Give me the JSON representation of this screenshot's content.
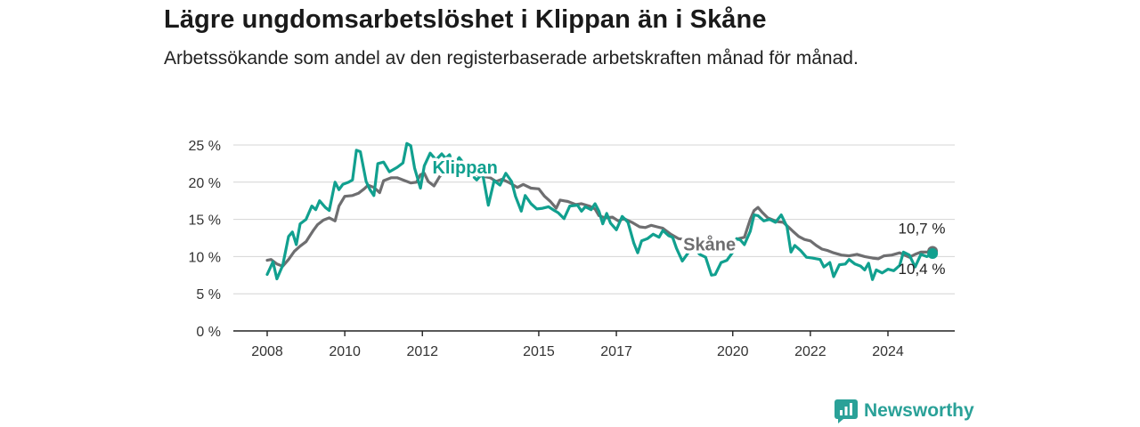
{
  "header": {
    "title": "Lägre ungdomsarbetslöshet i Klippan än i Skåne",
    "subtitle": "Arbetssökande som andel av den registerbaserade arbetskraften månad för månad."
  },
  "brand": {
    "name": "Newsworthy",
    "color": "#2aa198"
  },
  "chart_data": {
    "type": "line",
    "title": "Lägre ungdomsarbetslöshet i Klippan än i Skåne",
    "subtitle": "Arbetssökande som andel av den registerbaserade arbetskraften månad för månad.",
    "xlabel": "",
    "ylabel": "",
    "xlim": [
      2008.0,
      2025.2
    ],
    "ylim": [
      0,
      25
    ],
    "x_ticks": [
      2008,
      2010,
      2012,
      2015,
      2017,
      2020,
      2022,
      2024
    ],
    "y_ticks": [
      0,
      5,
      10,
      15,
      20,
      25
    ],
    "y_tick_labels": [
      "0 %",
      "5 %",
      "10 %",
      "15 %",
      "20 %",
      "25 %"
    ],
    "grid": true,
    "series": [
      {
        "name": "Skåne",
        "color": "#6e6e70",
        "end_label": "10,7 %",
        "points": [
          [
            2008.0,
            9.5
          ],
          [
            2008.1,
            9.6
          ],
          [
            2008.25,
            9.0
          ],
          [
            2008.4,
            8.7
          ],
          [
            2008.55,
            9.6
          ],
          [
            2008.7,
            10.7
          ],
          [
            2008.85,
            11.4
          ],
          [
            2009.0,
            12.0
          ],
          [
            2009.1,
            12.8
          ],
          [
            2009.2,
            13.6
          ],
          [
            2009.3,
            14.3
          ],
          [
            2009.45,
            14.9
          ],
          [
            2009.6,
            15.2
          ],
          [
            2009.75,
            14.8
          ],
          [
            2009.85,
            16.8
          ],
          [
            2010.0,
            18.1
          ],
          [
            2010.2,
            18.2
          ],
          [
            2010.35,
            18.5
          ],
          [
            2010.5,
            19.1
          ],
          [
            2010.6,
            19.6
          ],
          [
            2010.75,
            19.3
          ],
          [
            2010.9,
            18.6
          ],
          [
            2011.0,
            20.2
          ],
          [
            2011.2,
            20.6
          ],
          [
            2011.35,
            20.6
          ],
          [
            2011.55,
            20.2
          ],
          [
            2011.7,
            19.9
          ],
          [
            2011.85,
            20.0
          ],
          [
            2011.95,
            21.0
          ],
          [
            2012.05,
            21.2
          ],
          [
            2012.15,
            20.1
          ],
          [
            2012.3,
            19.5
          ],
          [
            2012.45,
            20.8
          ],
          [
            2012.55,
            21.1
          ],
          [
            2012.65,
            21.3
          ],
          [
            2012.8,
            21.5
          ],
          [
            2012.95,
            21.6
          ],
          [
            2013.15,
            21.7
          ],
          [
            2013.35,
            21.1
          ],
          [
            2013.55,
            20.8
          ],
          [
            2013.75,
            20.6
          ],
          [
            2013.9,
            20.1
          ],
          [
            2014.05,
            20.4
          ],
          [
            2014.25,
            19.9
          ],
          [
            2014.45,
            19.3
          ],
          [
            2014.6,
            19.7
          ],
          [
            2014.8,
            19.2
          ],
          [
            2015.0,
            19.1
          ],
          [
            2015.15,
            18.1
          ],
          [
            2015.3,
            17.4
          ],
          [
            2015.45,
            16.5
          ],
          [
            2015.55,
            17.6
          ],
          [
            2015.75,
            17.4
          ],
          [
            2015.95,
            17.0
          ],
          [
            2016.1,
            17.1
          ],
          [
            2016.3,
            16.8
          ],
          [
            2016.45,
            16.4
          ],
          [
            2016.55,
            15.5
          ],
          [
            2016.7,
            15.2
          ],
          [
            2016.9,
            15.3
          ],
          [
            2017.05,
            14.8
          ],
          [
            2017.2,
            15.1
          ],
          [
            2017.4,
            14.6
          ],
          [
            2017.6,
            14.0
          ],
          [
            2017.75,
            13.9
          ],
          [
            2017.9,
            14.2
          ],
          [
            2018.05,
            14.0
          ],
          [
            2018.2,
            13.8
          ],
          [
            2018.4,
            13.0
          ],
          [
            2018.6,
            12.4
          ],
          [
            2018.8,
            12.3
          ],
          [
            2019.0,
            12.2
          ],
          [
            2019.2,
            12.0
          ],
          [
            2019.4,
            11.6
          ],
          [
            2019.6,
            11.9
          ],
          [
            2019.8,
            11.9
          ],
          [
            2020.0,
            12.1
          ],
          [
            2020.15,
            12.4
          ],
          [
            2020.3,
            12.6
          ],
          [
            2020.45,
            15.0
          ],
          [
            2020.55,
            16.2
          ],
          [
            2020.65,
            16.6
          ],
          [
            2020.75,
            16.0
          ],
          [
            2020.9,
            15.2
          ],
          [
            2021.0,
            15.0
          ],
          [
            2021.15,
            14.7
          ],
          [
            2021.3,
            14.6
          ],
          [
            2021.45,
            13.9
          ],
          [
            2021.55,
            13.4
          ],
          [
            2021.7,
            12.7
          ],
          [
            2021.85,
            12.3
          ],
          [
            2022.0,
            12.1
          ],
          [
            2022.15,
            11.5
          ],
          [
            2022.3,
            11.0
          ],
          [
            2022.45,
            10.8
          ],
          [
            2022.6,
            10.5
          ],
          [
            2022.8,
            10.2
          ],
          [
            2023.0,
            10.1
          ],
          [
            2023.2,
            10.3
          ],
          [
            2023.4,
            10.0
          ],
          [
            2023.6,
            9.8
          ],
          [
            2023.75,
            9.7
          ],
          [
            2023.9,
            10.1
          ],
          [
            2024.1,
            10.2
          ],
          [
            2024.3,
            10.5
          ],
          [
            2024.55,
            9.9
          ],
          [
            2024.7,
            10.3
          ],
          [
            2024.85,
            10.6
          ],
          [
            2025.0,
            10.6
          ],
          [
            2025.15,
            10.7
          ]
        ]
      },
      {
        "name": "Klippan",
        "color": "#11a08f",
        "end_label": "10,4 %",
        "points": [
          [
            2008.0,
            7.6
          ],
          [
            2008.15,
            9.3
          ],
          [
            2008.25,
            7.0
          ],
          [
            2008.4,
            8.8
          ],
          [
            2008.55,
            12.7
          ],
          [
            2008.65,
            13.3
          ],
          [
            2008.75,
            11.6
          ],
          [
            2008.85,
            14.4
          ],
          [
            2009.0,
            15.0
          ],
          [
            2009.15,
            16.8
          ],
          [
            2009.25,
            16.3
          ],
          [
            2009.35,
            17.5
          ],
          [
            2009.5,
            16.6
          ],
          [
            2009.6,
            16.2
          ],
          [
            2009.75,
            20.0
          ],
          [
            2009.85,
            19.0
          ],
          [
            2009.95,
            19.7
          ],
          [
            2010.1,
            20.0
          ],
          [
            2010.2,
            20.3
          ],
          [
            2010.3,
            24.3
          ],
          [
            2010.4,
            24.1
          ],
          [
            2010.55,
            20.1
          ],
          [
            2010.65,
            19.0
          ],
          [
            2010.75,
            18.2
          ],
          [
            2010.85,
            22.5
          ],
          [
            2011.0,
            22.7
          ],
          [
            2011.15,
            21.4
          ],
          [
            2011.35,
            22.0
          ],
          [
            2011.5,
            22.6
          ],
          [
            2011.6,
            25.2
          ],
          [
            2011.7,
            24.9
          ],
          [
            2011.8,
            21.9
          ],
          [
            2011.95,
            19.2
          ],
          [
            2012.05,
            22.2
          ],
          [
            2012.2,
            23.9
          ],
          [
            2012.35,
            23.0
          ],
          [
            2012.5,
            23.8
          ],
          [
            2012.6,
            23.2
          ],
          [
            2012.7,
            23.7
          ],
          [
            2012.8,
            22.3
          ],
          [
            2012.95,
            23.3
          ],
          [
            2013.1,
            22.3
          ],
          [
            2013.25,
            21.1
          ],
          [
            2013.4,
            20.3
          ],
          [
            2013.55,
            21.2
          ],
          [
            2013.7,
            16.9
          ],
          [
            2013.85,
            20.2
          ],
          [
            2014.0,
            19.6
          ],
          [
            2014.15,
            21.2
          ],
          [
            2014.3,
            20.1
          ],
          [
            2014.4,
            18.1
          ],
          [
            2014.55,
            16.1
          ],
          [
            2014.65,
            18.2
          ],
          [
            2014.8,
            17.1
          ],
          [
            2014.95,
            16.4
          ],
          [
            2015.1,
            16.5
          ],
          [
            2015.25,
            16.7
          ],
          [
            2015.4,
            16.2
          ],
          [
            2015.5,
            15.9
          ],
          [
            2015.65,
            15.1
          ],
          [
            2015.8,
            16.8
          ],
          [
            2016.0,
            16.9
          ],
          [
            2016.1,
            16.1
          ],
          [
            2016.2,
            16.7
          ],
          [
            2016.35,
            16.3
          ],
          [
            2016.45,
            17.1
          ],
          [
            2016.55,
            16.1
          ],
          [
            2016.65,
            14.4
          ],
          [
            2016.75,
            15.8
          ],
          [
            2016.85,
            14.5
          ],
          [
            2017.0,
            13.6
          ],
          [
            2017.15,
            15.4
          ],
          [
            2017.3,
            14.6
          ],
          [
            2017.45,
            11.8
          ],
          [
            2017.55,
            10.5
          ],
          [
            2017.65,
            12.1
          ],
          [
            2017.8,
            12.4
          ],
          [
            2017.95,
            13.0
          ],
          [
            2018.1,
            12.6
          ],
          [
            2018.2,
            13.5
          ],
          [
            2018.35,
            12.8
          ],
          [
            2018.45,
            12.6
          ],
          [
            2018.55,
            11.1
          ],
          [
            2018.7,
            9.4
          ],
          [
            2018.85,
            10.5
          ],
          [
            2019.0,
            11.2
          ],
          [
            2019.15,
            10.3
          ],
          [
            2019.3,
            9.9
          ],
          [
            2019.45,
            7.5
          ],
          [
            2019.55,
            7.6
          ],
          [
            2019.7,
            9.2
          ],
          [
            2019.85,
            9.5
          ],
          [
            2020.0,
            10.6
          ],
          [
            2020.1,
            12.4
          ],
          [
            2020.2,
            12.2
          ],
          [
            2020.3,
            11.6
          ],
          [
            2020.45,
            13.4
          ],
          [
            2020.55,
            15.6
          ],
          [
            2020.65,
            15.5
          ],
          [
            2020.8,
            14.8
          ],
          [
            2020.95,
            15.0
          ],
          [
            2021.1,
            14.6
          ],
          [
            2021.25,
            15.6
          ],
          [
            2021.4,
            14.0
          ],
          [
            2021.5,
            10.6
          ],
          [
            2021.6,
            11.5
          ],
          [
            2021.75,
            10.8
          ],
          [
            2021.9,
            9.9
          ],
          [
            2022.05,
            9.8
          ],
          [
            2022.25,
            9.6
          ],
          [
            2022.35,
            8.6
          ],
          [
            2022.5,
            9.2
          ],
          [
            2022.6,
            7.3
          ],
          [
            2022.75,
            8.9
          ],
          [
            2022.9,
            9.0
          ],
          [
            2023.0,
            9.6
          ],
          [
            2023.15,
            9.0
          ],
          [
            2023.3,
            8.7
          ],
          [
            2023.4,
            8.2
          ],
          [
            2023.5,
            9.1
          ],
          [
            2023.6,
            6.9
          ],
          [
            2023.7,
            8.2
          ],
          [
            2023.85,
            7.8
          ],
          [
            2024.0,
            8.3
          ],
          [
            2024.15,
            8.1
          ],
          [
            2024.3,
            8.8
          ],
          [
            2024.4,
            10.6
          ],
          [
            2024.55,
            10.2
          ],
          [
            2024.7,
            8.6
          ],
          [
            2024.85,
            10.3
          ],
          [
            2025.0,
            10.0
          ],
          [
            2025.15,
            10.4
          ]
        ]
      }
    ],
    "inline_labels": [
      {
        "series": "Klippan",
        "text": "Klippan",
        "x": 2013.1,
        "y": 21.2
      },
      {
        "series": "Skåne",
        "text": "Skåne",
        "x": 2019.4,
        "y": 10.8
      }
    ]
  }
}
